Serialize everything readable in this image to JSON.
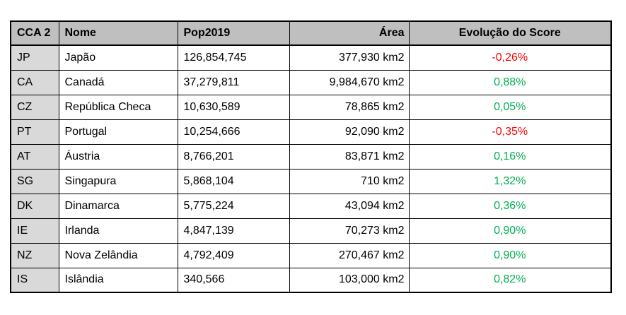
{
  "chart_data": {
    "type": "table",
    "columns": [
      {
        "key": "cca2",
        "label": "CCA 2",
        "align": "left"
      },
      {
        "key": "nome",
        "label": "Nome",
        "align": "left"
      },
      {
        "key": "pop2019",
        "label": "Pop2019",
        "align": "left"
      },
      {
        "key": "area",
        "label": "Área",
        "align": "right"
      },
      {
        "key": "score",
        "label": "Evolução do Score",
        "align": "center"
      }
    ],
    "rows": [
      {
        "cca2": "JP",
        "nome": "Japão",
        "pop2019": "126,854,745",
        "area": "377,930 km2",
        "score": "-0,26%",
        "score_trend": "negative"
      },
      {
        "cca2": "CA",
        "nome": "Canadá",
        "pop2019": "37,279,811",
        "area": "9,984,670 km2",
        "score": "0,88%",
        "score_trend": "positive"
      },
      {
        "cca2": "CZ",
        "nome": "República Checa",
        "pop2019": "10,630,589",
        "area": "78,865 km2",
        "score": "0,05%",
        "score_trend": "positive"
      },
      {
        "cca2": "PT",
        "nome": "Portugal",
        "pop2019": "10,254,666",
        "area": "92,090 km2",
        "score": "-0,35%",
        "score_trend": "negative"
      },
      {
        "cca2": "AT",
        "nome": "Áustria",
        "pop2019": "8,766,201",
        "area": "83,871 km2",
        "score": "0,16%",
        "score_trend": "positive"
      },
      {
        "cca2": "SG",
        "nome": "Singapura",
        "pop2019": "5,868,104",
        "area": "710 km2",
        "score": "1,32%",
        "score_trend": "positive"
      },
      {
        "cca2": "DK",
        "nome": "Dinamarca",
        "pop2019": "5,775,224",
        "area": "43,094 km2",
        "score": "0,36%",
        "score_trend": "positive"
      },
      {
        "cca2": "IE",
        "nome": "Irlanda",
        "pop2019": "4,847,139",
        "area": "70,273 km2",
        "score": "0,90%",
        "score_trend": "positive"
      },
      {
        "cca2": "NZ",
        "nome": "Nova Zelândia",
        "pop2019": "4,792,409",
        "area": "270,467 km2",
        "score": "0,90%",
        "score_trend": "positive"
      },
      {
        "cca2": "IS",
        "nome": "Islândia",
        "pop2019": "340,566",
        "area": "103,000 km2",
        "score": "0,82%",
        "score_trend": "positive"
      }
    ]
  },
  "colors": {
    "header_bg": "#BFBFBF",
    "first_column_bg": "#D9D9D9",
    "positive": "#00B050",
    "negative": "#FF0000",
    "border": "#000000",
    "page_bg": "#FFFFFF"
  }
}
